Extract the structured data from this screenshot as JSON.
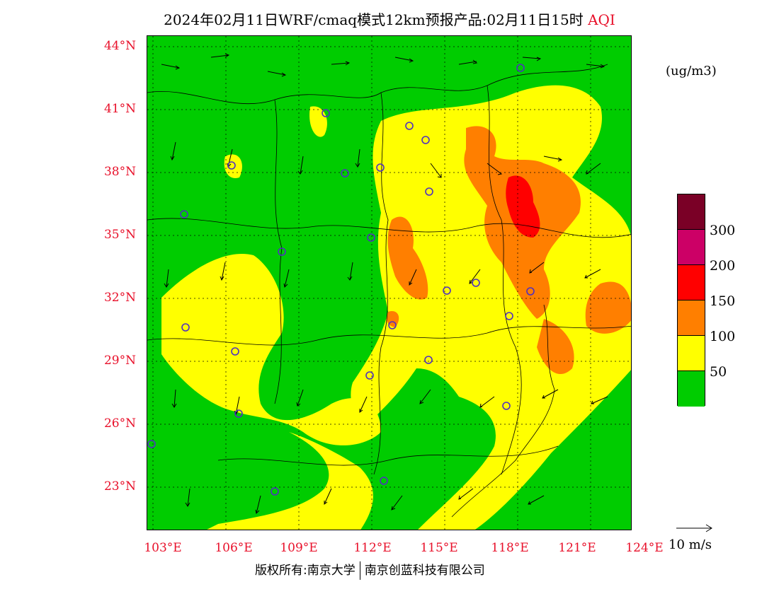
{
  "title": {
    "main": "2024年02月11日WRF/cmaq模式12km预报产品:02月11日15时",
    "variable": "AQI"
  },
  "units": "(ug/m3)",
  "latitude_labels": [
    "44°N",
    "41°N",
    "38°N",
    "35°N",
    "32°N",
    "29°N",
    "26°N",
    "23°N"
  ],
  "longitude_labels": [
    "103°E",
    "106°E",
    "109°E",
    "112°E",
    "115°E",
    "118°E",
    "121°E",
    "124°E"
  ],
  "colorbar": {
    "labels": [
      "300",
      "200",
      "150",
      "100",
      "50"
    ],
    "colors": [
      "#7a0026",
      "#cc0066",
      "#ff0000",
      "#ff7f00",
      "#ffff00",
      "#00cc00"
    ]
  },
  "wind_scale": "10 m/s",
  "copyright": {
    "left": "版权所有:南京大学",
    "right": "南京创蓝科技有限公司"
  },
  "map_colors": {
    "green": "#00cc00",
    "yellow": "#ffff00",
    "orange": "#ff7f00",
    "red": "#ff0000"
  }
}
